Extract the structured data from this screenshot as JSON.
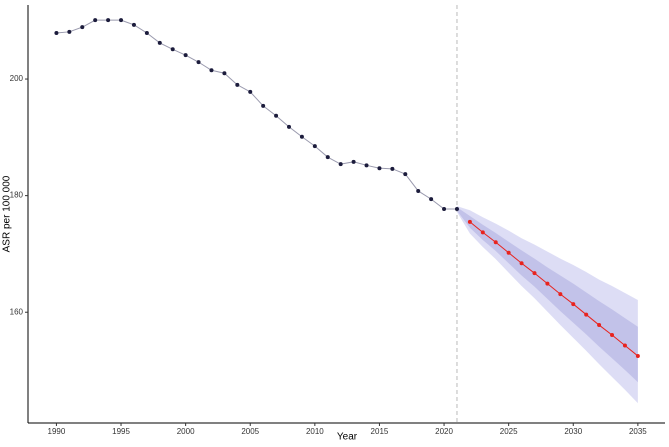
{
  "chart_data": {
    "type": "line",
    "x_label": "Year",
    "y_label": "ASR per 100 000",
    "xlim": [
      1987.8,
      2037.1
    ],
    "ylim": [
      141,
      212.7
    ],
    "xticks": [
      1990,
      1995,
      2000,
      2005,
      2010,
      2015,
      2020,
      2025,
      2030,
      2035
    ],
    "yticks": [
      160,
      180,
      200
    ],
    "vline": 2021,
    "observed": {
      "color": "#1c1c3c",
      "line_color": "#9a9aae",
      "x": [
        1990,
        1991,
        1992,
        1993,
        1994,
        1995,
        1996,
        1997,
        1998,
        1999,
        2000,
        2001,
        2002,
        2003,
        2004,
        2005,
        2006,
        2007,
        2008,
        2009,
        2010,
        2011,
        2012,
        2013,
        2014,
        2015,
        2016,
        2017,
        2018,
        2019,
        2020,
        2021
      ],
      "values": [
        207.9,
        208.1,
        208.9,
        210.1,
        210.1,
        210.1,
        209.3,
        207.9,
        206.2,
        205.1,
        204.1,
        202.9,
        201.5,
        201.0,
        199.0,
        197.8,
        195.4,
        193.7,
        191.8,
        190.1,
        188.5,
        186.6,
        185.4,
        185.8,
        185.2,
        184.7,
        184.6,
        183.7,
        180.8,
        179.4,
        177.7,
        177.7
      ]
    },
    "projected": {
      "color": "#e8231e",
      "x": [
        2022,
        2023,
        2024,
        2025,
        2026,
        2027,
        2028,
        2029,
        2030,
        2031,
        2032,
        2033,
        2034,
        2035
      ],
      "values": [
        175.5,
        173.7,
        172.0,
        170.2,
        168.4,
        166.7,
        164.9,
        163.1,
        161.4,
        159.6,
        157.8,
        156.1,
        154.3,
        152.5
      ]
    },
    "bands": [
      {
        "color": "#d4d4f2",
        "x": [
          2021,
          2022,
          2023,
          2024,
          2025,
          2026,
          2027,
          2028,
          2029,
          2030,
          2031,
          2032,
          2033,
          2034,
          2035
        ],
        "upper": [
          178.2,
          177.5,
          176.3,
          175.2,
          174.0,
          172.7,
          171.6,
          170.4,
          169.2,
          168.1,
          166.9,
          165.6,
          164.5,
          163.3,
          162.1
        ],
        "lower": [
          177.2,
          173.5,
          171.2,
          169.1,
          166.8,
          164.5,
          162.4,
          160.1,
          157.8,
          155.6,
          153.4,
          151.1,
          148.9,
          146.7,
          144.4
        ]
      },
      {
        "color": "#bcbce6",
        "x": [
          2021,
          2022,
          2023,
          2024,
          2025,
          2026,
          2027,
          2028,
          2029,
          2030,
          2031,
          2032,
          2033,
          2034,
          2035
        ],
        "upper": [
          178.0,
          176.5,
          175.0,
          173.6,
          172.1,
          170.6,
          169.2,
          167.7,
          166.3,
          164.9,
          163.4,
          161.9,
          160.5,
          159.0,
          157.5
        ],
        "lower": [
          177.4,
          174.5,
          172.4,
          170.5,
          168.4,
          166.3,
          164.4,
          162.3,
          160.2,
          158.2,
          156.2,
          154.1,
          152.1,
          150.1,
          148.0
        ]
      }
    ]
  }
}
